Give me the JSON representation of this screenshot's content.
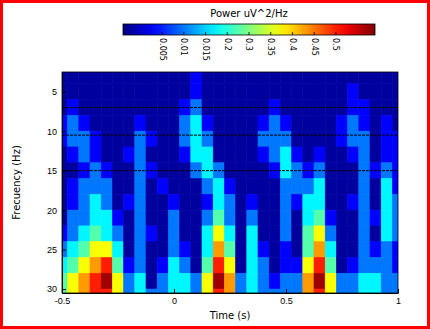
{
  "chart_data": {
    "type": "heatmap",
    "x_label": "Time (s)",
    "y_label": "Frecuency (Hz)",
    "xlim": [
      -0.5,
      1
    ],
    "xticks": [
      -0.5,
      0,
      0.5,
      1
    ],
    "ylim": [
      30.5,
      2.5
    ],
    "yticks": [
      5,
      10,
      15,
      20,
      25,
      30
    ],
    "x": [
      -0.5,
      -0.45,
      -0.4,
      -0.35,
      -0.3,
      -0.25,
      -0.2,
      -0.15,
      -0.1,
      -0.05,
      0,
      0.05,
      0.1,
      0.15,
      0.2,
      0.25,
      0.3,
      0.35,
      0.4,
      0.45,
      0.5,
      0.55,
      0.6,
      0.65,
      0.7,
      0.75,
      0.8,
      0.85,
      0.9,
      0.95,
      1
    ],
    "y": [
      3,
      5,
      7,
      9,
      11,
      13,
      15,
      17,
      19,
      21,
      23,
      25,
      27,
      29,
      31
    ],
    "band_lines": [
      7,
      10.5,
      15
    ],
    "colorbar": {
      "label": "Power uV^2/Hz",
      "range": [
        0,
        0.55
      ],
      "ticks": [
        0.005,
        0.01,
        0.015,
        0.2,
        0.3,
        0.35,
        0.4,
        0.45,
        0.5
      ]
    },
    "cells": [
      [
        0.001,
        0.001,
        0.001,
        0.001,
        0.001,
        0.001,
        0.001,
        0.001,
        0.001,
        0.001,
        0.001,
        0.001,
        0.004,
        0.001,
        0.001,
        0.001,
        0.001,
        0.001,
        0.001,
        0.001,
        0.001,
        0.001,
        0.001,
        0.001,
        0.001,
        0.001,
        0.001,
        0.001,
        0.001,
        0.001,
        0.001
      ],
      [
        0.001,
        0.001,
        0.001,
        0.001,
        0.001,
        0.001,
        0.001,
        0.001,
        0.001,
        0.001,
        0.001,
        0.001,
        0.004,
        0.001,
        0.001,
        0.001,
        0.001,
        0.001,
        0.001,
        0.001,
        0.001,
        0.001,
        0.001,
        0.001,
        0.001,
        0.001,
        0.004,
        0.001,
        0.001,
        0.001,
        0.001
      ],
      [
        0.001,
        0.004,
        0.001,
        0.001,
        0.001,
        0.001,
        0.001,
        0.001,
        0.001,
        0.001,
        0.001,
        0.004,
        0.01,
        0.001,
        0.001,
        0.001,
        0.001,
        0.001,
        0.001,
        0.004,
        0.001,
        0.001,
        0.001,
        0.001,
        0.001,
        0.001,
        0.004,
        0.004,
        0.001,
        0.001,
        0.001
      ],
      [
        0.004,
        0.01,
        0.004,
        0.001,
        0.001,
        0.001,
        0.001,
        0.004,
        0.001,
        0.001,
        0.001,
        0.01,
        0.1,
        0.004,
        0.001,
        0.001,
        0.001,
        0.001,
        0.004,
        0.01,
        0.004,
        0.001,
        0.001,
        0.001,
        0.001,
        0.004,
        0.01,
        0.004,
        0.001,
        0.004,
        0.001
      ],
      [
        0.004,
        0.01,
        0.01,
        0.004,
        0.001,
        0.001,
        0.001,
        0.01,
        0.004,
        0.001,
        0.001,
        0.01,
        0.1,
        0.01,
        0.001,
        0.001,
        0.001,
        0.001,
        0.01,
        0.01,
        0.01,
        0.001,
        0.001,
        0.001,
        0.001,
        0.004,
        0.01,
        0.01,
        0.001,
        0.004,
        0.004
      ],
      [
        0.001,
        0.004,
        0.01,
        0.004,
        0.001,
        0.001,
        0.004,
        0.01,
        0.001,
        0.001,
        0.001,
        0.004,
        0.1,
        0.1,
        0.001,
        0.001,
        0.001,
        0.001,
        0.004,
        0.01,
        0.1,
        0.004,
        0.001,
        0.004,
        0.001,
        0.001,
        0.004,
        0.01,
        0.001,
        0.004,
        0.004
      ],
      [
        0.001,
        0.001,
        0.004,
        0.01,
        0.004,
        0.001,
        0.001,
        0.01,
        0.004,
        0.001,
        0.001,
        0.001,
        0.01,
        0.1,
        0.01,
        0.001,
        0.001,
        0.001,
        0.001,
        0.004,
        0.1,
        0.01,
        0.004,
        0.01,
        0.001,
        0.001,
        0.001,
        0.01,
        0.004,
        0.01,
        0.004
      ],
      [
        0.001,
        0.004,
        0.01,
        0.01,
        0.01,
        0.001,
        0.001,
        0.01,
        0.001,
        0.004,
        0.001,
        0.001,
        0.001,
        0.01,
        0.1,
        0.004,
        0.001,
        0.001,
        0.001,
        0.001,
        0.01,
        0.01,
        0.01,
        0.1,
        0.001,
        0.001,
        0.001,
        0.01,
        0.001,
        0.1,
        0.004
      ],
      [
        0.001,
        0.004,
        0.01,
        0.1,
        0.01,
        0.001,
        0.004,
        0.01,
        0.001,
        0.001,
        0.004,
        0.001,
        0.001,
        0.004,
        0.1,
        0.01,
        0.001,
        0.004,
        0.001,
        0.001,
        0.01,
        0.004,
        0.1,
        0.1,
        0.001,
        0.001,
        0.004,
        0.01,
        0.001,
        0.1,
        0.01
      ],
      [
        0.001,
        0.01,
        0.01,
        0.1,
        0.1,
        0.004,
        0.001,
        0.01,
        0.001,
        0.001,
        0.01,
        0.001,
        0.001,
        0.01,
        0.25,
        0.01,
        0.001,
        0.01,
        0.001,
        0.001,
        0.01,
        0.001,
        0.1,
        0.25,
        0.004,
        0.001,
        0.001,
        0.01,
        0.004,
        0.1,
        0.01
      ],
      [
        0.004,
        0.01,
        0.1,
        0.25,
        0.1,
        0.01,
        0.001,
        0.01,
        0.004,
        0.001,
        0.01,
        0.001,
        0.001,
        0.1,
        0.37,
        0.1,
        0.001,
        0.1,
        0.001,
        0.001,
        0.01,
        0.001,
        0.25,
        0.37,
        0.01,
        0.001,
        0.001,
        0.01,
        0.001,
        0.1,
        0.01
      ],
      [
        0.01,
        0.1,
        0.25,
        0.37,
        0.37,
        0.1,
        0.001,
        0.01,
        0.001,
        0.001,
        0.01,
        0.004,
        0.001,
        0.1,
        0.43,
        0.25,
        0.001,
        0.1,
        0.004,
        0.001,
        0.004,
        0.001,
        0.25,
        0.43,
        0.1,
        0.001,
        0.001,
        0.01,
        0.004,
        0.01,
        0.004
      ],
      [
        0.1,
        0.25,
        0.37,
        0.43,
        0.5,
        0.25,
        0.004,
        0.01,
        0.001,
        0.004,
        0.1,
        0.01,
        0.001,
        0.25,
        0.5,
        0.37,
        0.001,
        0.1,
        0.01,
        0.001,
        0.004,
        0.004,
        0.37,
        0.5,
        0.25,
        0.001,
        0.004,
        0.01,
        0.01,
        0.01,
        0.004
      ],
      [
        0.25,
        0.37,
        0.43,
        0.5,
        0.54,
        0.37,
        0.01,
        0.1,
        0.001,
        0.01,
        0.1,
        0.1,
        0.01,
        0.37,
        0.54,
        0.43,
        0.01,
        0.1,
        0.01,
        0.004,
        0.01,
        0.01,
        0.43,
        0.54,
        0.37,
        0.01,
        0.01,
        0.1,
        0.1,
        0.01,
        0.01
      ],
      [
        0.25,
        0.37,
        0.43,
        0.5,
        0.5,
        0.37,
        0.01,
        0.1,
        0.01,
        0.01,
        0.1,
        0.1,
        0.01,
        0.37,
        0.5,
        0.43,
        0.01,
        0.1,
        0.01,
        0.01,
        0.01,
        0.01,
        0.43,
        0.5,
        0.37,
        0.01,
        0.01,
        0.1,
        0.1,
        0.01,
        0.01
      ]
    ]
  }
}
